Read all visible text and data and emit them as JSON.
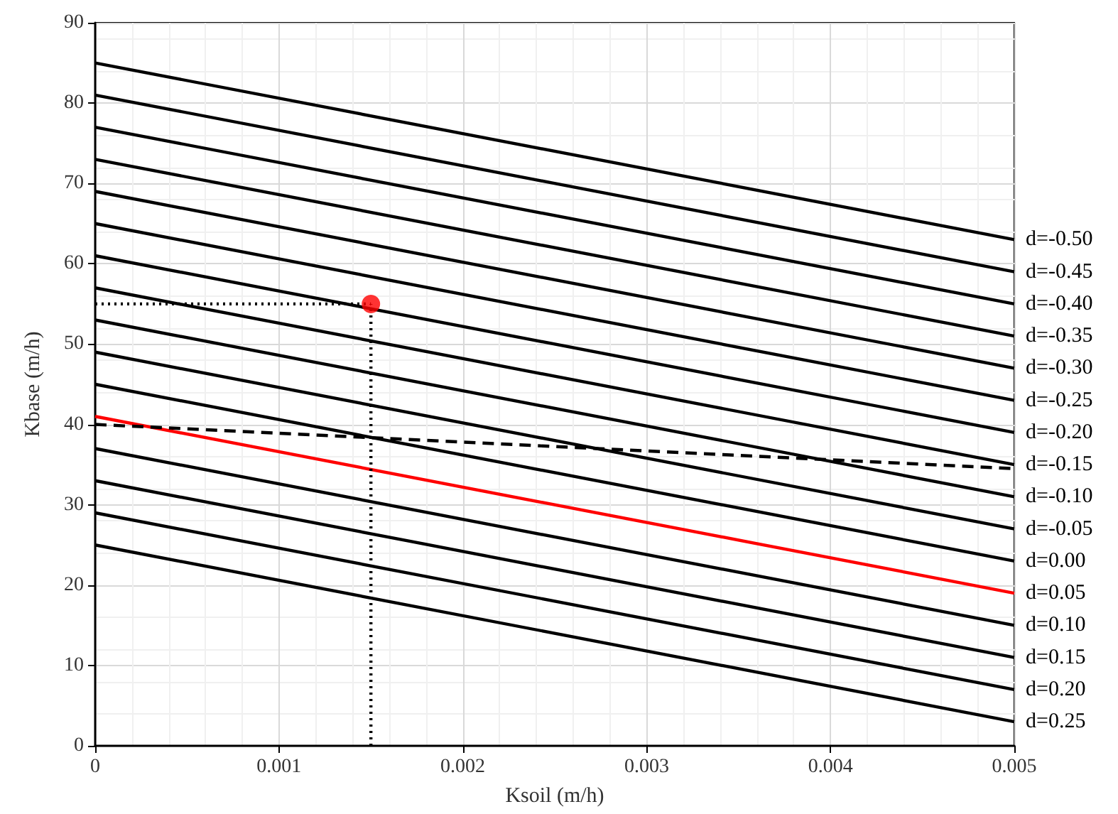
{
  "chart_data": {
    "type": "line",
    "xlabel": "Ksoil (m/h)",
    "ylabel": "Kbase (m/h)",
    "xlim": [
      0,
      0.005
    ],
    "xticks": [
      0,
      0.001,
      0.002,
      0.003,
      0.004,
      0.005
    ],
    "ylim": [
      0,
      90
    ],
    "yticks": [
      0,
      10,
      20,
      30,
      40,
      50,
      60,
      70,
      80,
      90
    ],
    "grid": true,
    "legend": false,
    "marker": "none",
    "line_style": "solid",
    "series": [
      {
        "name": "d=-0.50",
        "color": "#000000",
        "x": [
          0,
          0.005
        ],
        "values": [
          85,
          63
        ]
      },
      {
        "name": "d=-0.45",
        "color": "#000000",
        "x": [
          0,
          0.005
        ],
        "values": [
          81,
          59
        ]
      },
      {
        "name": "d=-0.40",
        "color": "#000000",
        "x": [
          0,
          0.005
        ],
        "values": [
          77,
          55
        ]
      },
      {
        "name": "d=-0.35",
        "color": "#000000",
        "x": [
          0,
          0.005
        ],
        "values": [
          73,
          51
        ]
      },
      {
        "name": "d=-0.30",
        "color": "#000000",
        "x": [
          0,
          0.005
        ],
        "values": [
          69,
          47
        ]
      },
      {
        "name": "d=-0.25",
        "color": "#000000",
        "x": [
          0,
          0.005
        ],
        "values": [
          65,
          43
        ]
      },
      {
        "name": "d=-0.20",
        "color": "#000000",
        "x": [
          0,
          0.005
        ],
        "values": [
          61,
          39
        ]
      },
      {
        "name": "d=-0.15",
        "color": "#000000",
        "x": [
          0,
          0.005
        ],
        "values": [
          57,
          35
        ]
      },
      {
        "name": "d=-0.10",
        "color": "#000000",
        "x": [
          0,
          0.005
        ],
        "values": [
          53,
          31
        ]
      },
      {
        "name": "d=-0.05",
        "color": "#000000",
        "x": [
          0,
          0.005
        ],
        "values": [
          49,
          27
        ]
      },
      {
        "name": "d=0.00",
        "color": "#000000",
        "x": [
          0,
          0.005
        ],
        "values": [
          45,
          23
        ]
      },
      {
        "name": "d=0.05",
        "color": "#ff0000",
        "x": [
          0,
          0.005
        ],
        "values": [
          41,
          19
        ]
      },
      {
        "name": "d=0.10",
        "color": "#000000",
        "x": [
          0,
          0.005
        ],
        "values": [
          37,
          15
        ]
      },
      {
        "name": "d=0.15",
        "color": "#000000",
        "x": [
          0,
          0.005
        ],
        "values": [
          33,
          11
        ]
      },
      {
        "name": "d=0.20",
        "color": "#000000",
        "x": [
          0,
          0.005
        ],
        "values": [
          29,
          7
        ]
      },
      {
        "name": "d=0.25",
        "color": "#000000",
        "x": [
          0,
          0.005
        ],
        "values": [
          25,
          3
        ]
      },
      {
        "color": "#000000",
        "x": [
          0,
          0.005
        ],
        "values": [
          40,
          34.5
        ],
        "line_style": "dashed"
      },
      {
        "color": "#000000",
        "x": [
          0,
          0.0015
        ],
        "values": [
          55,
          55
        ],
        "line_style": "dotted"
      },
      {
        "color": "#000000",
        "x": [
          0.0015,
          0.0015
        ],
        "values": [
          0,
          55
        ],
        "line_style": "dotted"
      },
      {
        "type": "scatter",
        "color": "#ff0000",
        "x": [
          0.0015
        ],
        "values": [
          55
        ],
        "marker": "circle"
      }
    ]
  }
}
